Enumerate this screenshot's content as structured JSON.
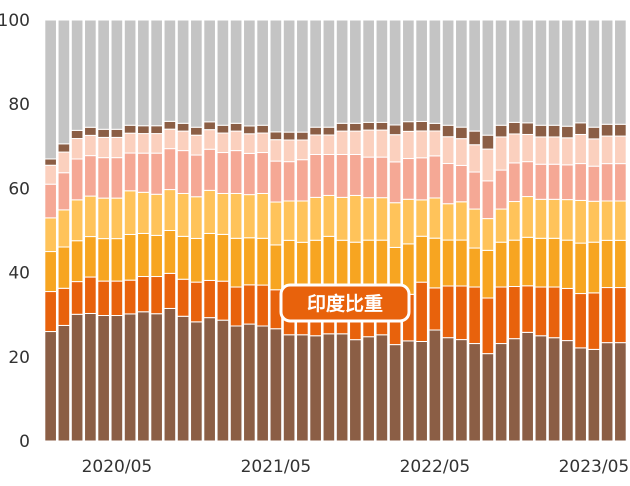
{
  "chart_data": {
    "type": "bar",
    "stacked": true,
    "ylim": [
      0,
      100
    ],
    "yticks": [
      0,
      20,
      40,
      60,
      80,
      100
    ],
    "xtick_labels": [
      {
        "index": 5,
        "label": "2020/05"
      },
      {
        "index": 17,
        "label": "2021/05"
      },
      {
        "index": 29,
        "label": "2022/05"
      },
      {
        "index": 41,
        "label": "2023/05"
      }
    ],
    "categories": [
      "2020/01",
      "2020/02",
      "2020/03",
      "2020/04",
      "2020/05",
      "2020/06",
      "2020/07",
      "2020/08",
      "2020/09",
      "2020/10",
      "2020/11",
      "2020/12",
      "2021/01",
      "2021/02",
      "2021/03",
      "2021/04",
      "2021/05",
      "2021/06",
      "2021/07",
      "2021/08",
      "2021/09",
      "2021/10",
      "2021/11",
      "2021/12",
      "2022/01",
      "2022/02",
      "2022/03",
      "2022/04",
      "2022/05",
      "2022/06",
      "2022/07",
      "2022/08",
      "2022/09",
      "2022/10",
      "2022/11",
      "2022/12",
      "2023/01",
      "2023/02",
      "2023/03",
      "2023/04",
      "2023/05",
      "2023/06",
      "2023/07",
      "2023/08"
    ],
    "series_colors": [
      "#8b5e45",
      "#e8620c",
      "#f7a521",
      "#ffc35a",
      "#f5a895",
      "#fbd0be",
      "#8b5e45",
      "#c4c4c4"
    ],
    "series": [
      {
        "values": [
          26,
          28,
          31,
          31.5,
          31,
          31,
          32,
          33,
          32.5,
          34,
          32,
          30,
          31.5,
          31,
          29.5,
          29.8,
          29.5,
          28.8,
          27,
          27,
          27,
          27.5,
          27.5,
          26,
          27,
          27.5,
          24.8,
          25.8,
          26,
          29,
          27,
          26.5,
          25,
          22,
          25,
          26.5,
          28,
          27,
          26.5,
          26,
          24,
          23.5,
          25,
          25
        ]
      },
      {
        "values": [
          9.5,
          9,
          8,
          9,
          8.5,
          8.5,
          8.5,
          9,
          9.5,
          9,
          9.5,
          10,
          9.5,
          10,
          10,
          10,
          10.5,
          10,
          11.5,
          11.5,
          11.5,
          12.2,
          12,
          12,
          11.5,
          11.5,
          13,
          12,
          15.5,
          11,
          13.5,
          14,
          14.5,
          14,
          14.5,
          13.5,
          12,
          12.5,
          13,
          13.5,
          14,
          14.5,
          14,
          14
        ]
      },
      {
        "values": [
          9.5,
          10,
          10,
          10,
          10.5,
          10.5,
          11.5,
          11,
          10.5,
          11,
          11,
          11,
          12,
          12,
          12.5,
          12,
          12,
          11.5,
          12.5,
          12,
          13,
          12.8,
          12,
          13,
          13.5,
          13,
          12,
          13,
          12,
          13,
          12,
          12,
          10,
          12,
          11.5,
          12,
          12.5,
          12.5,
          12.5,
          12.5,
          13,
          13,
          12,
          12
        ]
      },
      {
        "values": [
          8,
          9,
          10,
          10,
          10,
          10,
          11,
          10.5,
          10.5,
          10.5,
          11,
          10.5,
          11,
          10.5,
          11.5,
          11,
          11.5,
          11,
          10,
          10.5,
          11,
          10.5,
          11,
          12,
          11,
          11,
          11.5,
          11.5,
          9.5,
          10.5,
          9.5,
          10,
          10,
          8,
          8.5,
          10,
          10.5,
          10,
          10,
          10.5,
          11,
          10.5,
          10,
          10
        ]
      },
      {
        "values": [
          8,
          9,
          10,
          10,
          10,
          10,
          9.5,
          10,
          10.5,
          10.5,
          11,
          10.5,
          10.5,
          10.5,
          11,
          10.5,
          10.5,
          10.5,
          10,
          10.5,
          11,
          10.5,
          11,
          10.5,
          10.5,
          10.5,
          10.5,
          10.5,
          11,
          11,
          10.5,
          9.5,
          9.5,
          9.5,
          10,
          10,
          9,
          9,
          9,
          9,
          9.5,
          9,
          9.5,
          9.5
        ]
      },
      {
        "values": [
          4.5,
          5,
          5,
          5,
          5,
          5,
          5,
          5,
          5,
          5,
          5,
          5,
          5,
          5,
          5,
          5,
          5,
          5.5,
          5.5,
          5,
          5,
          5,
          6,
          6,
          7,
          7,
          7,
          7,
          7,
          6.5,
          7,
          7,
          7,
          8,
          8.5,
          7.5,
          7,
          7,
          7,
          7,
          7.5,
          7,
          7,
          7
        ]
      },
      {
        "values": [
          1.5,
          2,
          2,
          2,
          2,
          2,
          2,
          2,
          2,
          2,
          2,
          2,
          2,
          2,
          2,
          2,
          2,
          2,
          2,
          2,
          2,
          2,
          2,
          2,
          2,
          2,
          2.5,
          2.5,
          2.5,
          2,
          3,
          3,
          3.5,
          3.5,
          3,
          3,
          3,
          3,
          3,
          3,
          3,
          3,
          3,
          3
        ]
      },
      {
        "values": [
          33,
          30,
          27,
          26.5,
          27,
          27,
          26.5,
          27,
          27,
          26,
          26.5,
          27,
          26,
          27,
          26.5,
          27,
          27,
          28.7,
          28.5,
          28.5,
          27.5,
          27.5,
          26.5,
          26.5,
          26.5,
          26.5,
          27,
          26.2,
          26.5,
          27,
          27.5,
          28,
          28.5,
          29,
          27,
          26.5,
          26.5,
          27,
          27,
          27.5,
          26.5,
          27.5,
          26.5,
          26.5
        ]
      }
    ],
    "annotations": [
      {
        "text": "印度比重",
        "series_index": 1
      }
    ]
  }
}
